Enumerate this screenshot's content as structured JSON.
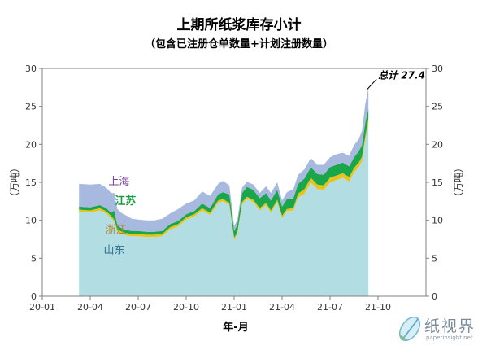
{
  "chart_data": {
    "type": "area",
    "stacked": true,
    "title": "上期所纸浆库存小计",
    "subtitle": "（包含已注册仓单数量+计划注册数量）",
    "xlabel": "年-月",
    "ylabel_left": "（万吨）",
    "ylabel_right": "（万吨）",
    "ylim": [
      0,
      30
    ],
    "y_ticks": [
      0,
      5,
      10,
      15,
      20,
      25,
      30
    ],
    "x_ticks": [
      {
        "label": "20-01",
        "t": 0
      },
      {
        "label": "20-04",
        "t": 3
      },
      {
        "label": "20-07",
        "t": 6
      },
      {
        "label": "20-10",
        "t": 9
      },
      {
        "label": "21-01",
        "t": 12
      },
      {
        "label": "21-04",
        "t": 15
      },
      {
        "label": "21-07",
        "t": 18
      },
      {
        "label": "21-10",
        "t": 21
      }
    ],
    "x_range": [
      0,
      24
    ],
    "grid": false,
    "series": [
      {
        "name": "山东",
        "color": "#b1dde3",
        "label_color": "#2e6f95"
      },
      {
        "name": "浙江",
        "color": "#e8c41a",
        "label_color": "#b8862b"
      },
      {
        "name": "江苏",
        "color": "#1aa64a",
        "label_color": "#1a9a40"
      },
      {
        "name": "上海",
        "color": "#a7b9df",
        "label_color": "#7b3f9e"
      }
    ],
    "x": [
      2.3,
      3.0,
      3.6,
      4.0,
      4.3,
      4.5,
      4.7,
      5.0,
      5.3,
      5.6,
      6.0,
      6.5,
      7.0,
      7.5,
      8.0,
      8.5,
      9.0,
      9.5,
      10.0,
      10.5,
      11.0,
      11.3,
      11.7,
      12.0,
      12.2,
      12.5,
      12.8,
      13.2,
      13.6,
      14.0,
      14.3,
      14.7,
      15.0,
      15.3,
      15.7,
      16.0,
      16.4,
      16.8,
      17.2,
      17.6,
      18.0,
      18.4,
      18.8,
      19.2,
      19.5,
      19.8,
      20.0,
      20.2,
      20.4
    ],
    "values": {
      "山东": [
        11.1,
        11.0,
        11.3,
        10.9,
        10.3,
        9.8,
        8.5,
        8.2,
        8.0,
        7.9,
        7.9,
        7.8,
        7.8,
        7.9,
        8.8,
        9.2,
        10.1,
        10.5,
        11.3,
        10.7,
        12.3,
        12.5,
        12.0,
        7.4,
        8.1,
        12.1,
        12.8,
        12.4,
        11.3,
        12.0,
        11.0,
        12.4,
        10.3,
        11.2,
        11.3,
        13.0,
        13.5,
        15.0,
        14.1,
        14.0,
        15.0,
        15.3,
        15.6,
        15.1,
        16.3,
        17.0,
        17.8,
        20.5,
        22.8
      ],
      "浙江": [
        0.3,
        0.3,
        0.3,
        0.3,
        0.3,
        0.3,
        0.3,
        0.3,
        0.3,
        0.3,
        0.3,
        0.3,
        0.3,
        0.3,
        0.3,
        0.3,
        0.3,
        0.3,
        0.3,
        0.3,
        0.3,
        0.3,
        0.3,
        0.3,
        0.3,
        0.3,
        0.3,
        0.3,
        0.3,
        0.3,
        0.3,
        0.3,
        0.3,
        0.3,
        0.3,
        0.5,
        0.6,
        0.6,
        0.6,
        0.6,
        0.6,
        0.6,
        0.6,
        0.6,
        0.6,
        0.6,
        0.6,
        0.6,
        0.6
      ],
      "江苏": [
        0.4,
        0.4,
        0.4,
        0.4,
        0.4,
        1.2,
        0.5,
        0.4,
        0.4,
        0.4,
        0.4,
        0.4,
        0.4,
        0.4,
        0.4,
        0.4,
        0.4,
        0.4,
        0.6,
        0.6,
        0.8,
        0.9,
        1.1,
        0.9,
        1.0,
        1.2,
        1.3,
        1.3,
        1.3,
        1.3,
        1.3,
        1.3,
        1.2,
        1.3,
        1.3,
        1.3,
        1.4,
        1.4,
        1.4,
        1.4,
        1.4,
        1.4,
        1.4,
        1.4,
        1.4,
        1.5,
        1.5,
        1.7,
        1.3
      ],
      "上海": [
        3.0,
        3.0,
        2.8,
        2.7,
        2.6,
        2.3,
        2.2,
        2.0,
        1.9,
        1.6,
        1.5,
        1.5,
        1.5,
        1.6,
        1.4,
        1.6,
        1.4,
        1.4,
        1.6,
        1.6,
        1.4,
        1.5,
        1.2,
        0.7,
        0.6,
        0.7,
        0.7,
        0.7,
        0.7,
        0.9,
        1.0,
        1.0,
        0.8,
        0.9,
        1.2,
        1.2,
        1.2,
        1.2,
        1.2,
        1.3,
        1.3,
        1.4,
        1.3,
        1.4,
        1.6,
        1.6,
        1.9,
        2.5,
        2.7
      ]
    },
    "annotation": {
      "text": "总计 27.4",
      "x": 20.4,
      "y": 27.4
    }
  },
  "logo": {
    "text": "纸视界",
    "url": "paperinsight.net"
  }
}
